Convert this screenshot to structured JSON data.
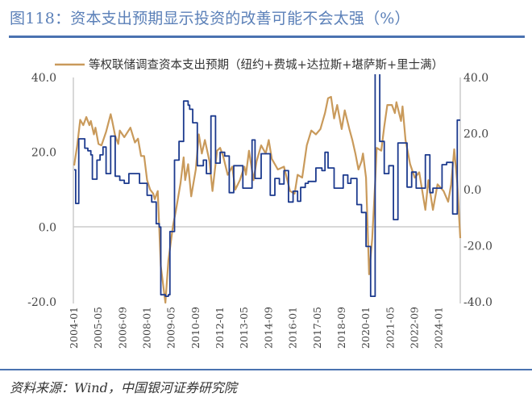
{
  "title": "图118：资本支出预期显示投资的改善可能不会太强（%）",
  "source": "资料来源：Wind，中国银河证券研究院",
  "chart_data": {
    "type": "line",
    "title": "图118：资本支出预期显示投资的改善可能不会太强（%）",
    "xlabel": "",
    "x_tick_labels": [
      "2004-01",
      "2005-05",
      "2006-09",
      "2008-01",
      "2009-05",
      "2010-09",
      "2012-01",
      "2013-05",
      "2014-09",
      "2016-01",
      "2017-05",
      "2018-09",
      "2020-01",
      "2021-05",
      "2022-09",
      "2024-01"
    ],
    "y_left": {
      "range": [
        -20,
        40
      ],
      "ticks": [
        "-20.0",
        "0.0",
        "20.0",
        "40.0"
      ]
    },
    "y_right": {
      "range": [
        -40,
        40
      ],
      "ticks": [
        "-40.0",
        "-20.0",
        "0.0",
        "20.0",
        "40.0"
      ]
    },
    "grid": false,
    "legend_position": "top",
    "series": [
      {
        "name": "",
        "axis": "left",
        "style": "step",
        "color": "#1c3a8e",
        "points": [
          [
            "2004-01",
            15.3
          ],
          [
            "2004-02",
            6.3
          ],
          [
            "2004-04",
            23.6
          ],
          [
            "2004-08",
            21.1
          ],
          [
            "2004-10",
            20.4
          ],
          [
            "2004-12",
            19.3
          ],
          [
            "2005-01",
            12.8
          ],
          [
            "2005-04",
            17.9
          ],
          [
            "2005-06",
            19.3
          ],
          [
            "2005-08",
            21.4
          ],
          [
            "2005-10",
            14.3
          ],
          [
            "2006-01",
            24.3
          ],
          [
            "2006-04",
            13.6
          ],
          [
            "2006-07",
            12.5
          ],
          [
            "2006-10",
            11.7
          ],
          [
            "2007-01",
            14.3
          ],
          [
            "2007-08",
            11.7
          ],
          [
            "2008-01",
            8.5
          ],
          [
            "2008-04",
            6.7
          ],
          [
            "2008-07",
            0.9
          ],
          [
            "2008-09",
            0
          ],
          [
            "2008-10",
            -18.1
          ],
          [
            "2009-01",
            -18.5
          ],
          [
            "2009-03",
            -18.1
          ],
          [
            "2009-04",
            -1.2
          ],
          [
            "2009-07",
            17.9
          ],
          [
            "2009-10",
            22.9
          ],
          [
            "2010-01",
            33.7
          ],
          [
            "2010-04",
            32.6
          ],
          [
            "2010-05",
            31.5
          ],
          [
            "2010-07",
            27.9
          ],
          [
            "2010-10",
            16.4
          ],
          [
            "2011-02",
            17.9
          ],
          [
            "2011-04",
            14.3
          ],
          [
            "2011-07",
            29.7
          ],
          [
            "2011-10",
            17.1
          ],
          [
            "2012-01",
            20
          ],
          [
            "2012-04",
            19
          ],
          [
            "2012-07",
            9.2
          ],
          [
            "2012-10",
            16.4
          ],
          [
            "2013-04",
            10.4
          ],
          [
            "2013-10",
            23.3
          ],
          [
            "2013-12",
            13
          ],
          [
            "2014-04",
            19.6
          ],
          [
            "2014-10",
            8.5
          ],
          [
            "2015-01",
            13
          ],
          [
            "2015-04",
            11.5
          ],
          [
            "2015-07",
            15.1
          ],
          [
            "2015-10",
            6.7
          ],
          [
            "2016-01",
            9.6
          ],
          [
            "2016-04",
            6.9
          ],
          [
            "2016-06",
            10.6
          ],
          [
            "2016-09",
            11.7
          ],
          [
            "2016-11",
            12.2
          ],
          [
            "2017-04",
            15.8
          ],
          [
            "2017-08",
            15.1
          ],
          [
            "2017-10",
            20
          ],
          [
            "2017-12",
            15.8
          ],
          [
            "2018-04",
            10.4
          ],
          [
            "2018-10",
            13.9
          ],
          [
            "2019-01",
            11.7
          ],
          [
            "2019-03",
            13
          ],
          [
            "2019-07",
            6
          ],
          [
            "2019-10",
            3.9
          ],
          [
            "2020-01",
            -5.2
          ],
          [
            "2020-04",
            -18.5
          ],
          [
            "2020-07",
            45
          ],
          [
            "2020-10",
            22.9
          ],
          [
            "2021-01",
            14.3
          ],
          [
            "2021-04",
            16.4
          ],
          [
            "2021-07",
            2
          ],
          [
            "2021-10",
            22.5
          ],
          [
            "2022-04",
            10.7
          ],
          [
            "2022-07",
            14.7
          ],
          [
            "2022-10",
            10.4
          ],
          [
            "2023-04",
            19.3
          ],
          [
            "2023-07",
            9.2
          ],
          [
            "2023-09",
            10.4
          ],
          [
            "2024-03",
            16.7
          ],
          [
            "2024-06",
            17.3
          ],
          [
            "2024-10",
            3.5
          ],
          [
            "2025-01",
            28.6
          ],
          [
            "2025-03",
            28.6
          ]
        ]
      },
      {
        "name": "等权联储调查资本支出预期（纽约+费城+达拉斯+堪萨斯+里士满）",
        "axis": "right",
        "style": "line",
        "color": "#c99a5b",
        "points": [
          [
            "2004-01",
            8.6
          ],
          [
            "2004-03",
            15.8
          ],
          [
            "2004-05",
            24.9
          ],
          [
            "2004-07",
            23
          ],
          [
            "2004-09",
            25.9
          ],
          [
            "2004-11",
            23
          ],
          [
            "2004-12",
            24.5
          ],
          [
            "2005-02",
            19.7
          ],
          [
            "2005-03",
            22.1
          ],
          [
            "2005-05",
            16.3
          ],
          [
            "2005-07",
            15.8
          ],
          [
            "2005-10",
            20.6
          ],
          [
            "2006-01",
            26.9
          ],
          [
            "2006-02",
            24.5
          ],
          [
            "2006-04",
            19.2
          ],
          [
            "2006-06",
            16.3
          ],
          [
            "2006-07",
            21.1
          ],
          [
            "2006-10",
            18.7
          ],
          [
            "2007-02",
            22.1
          ],
          [
            "2007-05",
            16.8
          ],
          [
            "2007-07",
            18.2
          ],
          [
            "2007-09",
            12
          ],
          [
            "2007-11",
            12
          ],
          [
            "2008-01",
            3.4
          ],
          [
            "2008-03",
            0
          ],
          [
            "2008-05",
            -1.4
          ],
          [
            "2008-06",
            -3.4
          ],
          [
            "2008-08",
            -0.5
          ],
          [
            "2008-10",
            -27.3
          ],
          [
            "2009-01",
            -40.3
          ],
          [
            "2009-03",
            -25.3
          ],
          [
            "2009-06",
            -12.9
          ],
          [
            "2009-08",
            -7.2
          ],
          [
            "2009-11",
            2.4
          ],
          [
            "2010-01",
            11.5
          ],
          [
            "2010-02",
            3.4
          ],
          [
            "2010-04",
            9.1
          ],
          [
            "2010-06",
            -2.4
          ],
          [
            "2010-09",
            7.2
          ],
          [
            "2010-11",
            19.7
          ],
          [
            "2011-01",
            12.9
          ],
          [
            "2011-03",
            17.7
          ],
          [
            "2011-06",
            10.1
          ],
          [
            "2011-08",
            -0.5
          ],
          [
            "2011-11",
            13.9
          ],
          [
            "2012-01",
            14.9
          ],
          [
            "2012-03",
            12
          ],
          [
            "2012-06",
            5.3
          ],
          [
            "2012-09",
            8.2
          ],
          [
            "2012-11",
            0
          ],
          [
            "2013-02",
            3.4
          ],
          [
            "2013-05",
            8.2
          ],
          [
            "2013-06",
            5.3
          ],
          [
            "2013-08",
            13.9
          ],
          [
            "2013-11",
            3.4
          ],
          [
            "2014-01",
            10.1
          ],
          [
            "2014-04",
            15.8
          ],
          [
            "2014-07",
            12.9
          ],
          [
            "2014-09",
            17.7
          ],
          [
            "2014-11",
            11
          ],
          [
            "2015-03",
            7.2
          ],
          [
            "2015-07",
            8.2
          ],
          [
            "2015-11",
            -0.5
          ],
          [
            "2016-02",
            -1.4
          ],
          [
            "2016-04",
            5.3
          ],
          [
            "2016-07",
            4.3
          ],
          [
            "2016-10",
            15.8
          ],
          [
            "2017-01",
            21.1
          ],
          [
            "2017-04",
            19.7
          ],
          [
            "2017-07",
            21.6
          ],
          [
            "2017-10",
            27.3
          ],
          [
            "2017-12",
            32.6
          ],
          [
            "2018-02",
            33.1
          ],
          [
            "2018-04",
            25.4
          ],
          [
            "2018-06",
            30.2
          ],
          [
            "2018-09",
            21.6
          ],
          [
            "2018-11",
            28.3
          ],
          [
            "2019-02",
            21.6
          ],
          [
            "2019-04",
            17.7
          ],
          [
            "2019-06",
            12.9
          ],
          [
            "2019-08",
            7.2
          ],
          [
            "2019-10",
            10.1
          ],
          [
            "2019-11",
            12.9
          ],
          [
            "2020-01",
            4.3
          ],
          [
            "2020-03",
            -30.2
          ],
          [
            "2020-05",
            -17.7
          ],
          [
            "2020-07",
            2.4
          ],
          [
            "2020-08",
            14.9
          ],
          [
            "2020-11",
            13.9
          ],
          [
            "2021-01",
            22.5
          ],
          [
            "2021-03",
            30.2
          ],
          [
            "2021-06",
            30.2
          ],
          [
            "2021-08",
            27.3
          ],
          [
            "2021-09",
            31.2
          ],
          [
            "2021-12",
            24.5
          ],
          [
            "2022-01",
            29.7
          ],
          [
            "2022-03",
            17.7
          ],
          [
            "2022-06",
            9.1
          ],
          [
            "2022-09",
            4.3
          ],
          [
            "2022-12",
            6.2
          ],
          [
            "2023-04",
            -7.2
          ],
          [
            "2023-06",
            3.4
          ],
          [
            "2023-09",
            -7.2
          ],
          [
            "2023-12",
            1.9
          ],
          [
            "2024-04",
            -0.5
          ],
          [
            "2024-07",
            -4.3
          ],
          [
            "2024-09",
            1.9
          ],
          [
            "2024-11",
            14.4
          ],
          [
            "2025-01",
            2.4
          ],
          [
            "2025-03",
            -17.3
          ]
        ]
      }
    ]
  }
}
